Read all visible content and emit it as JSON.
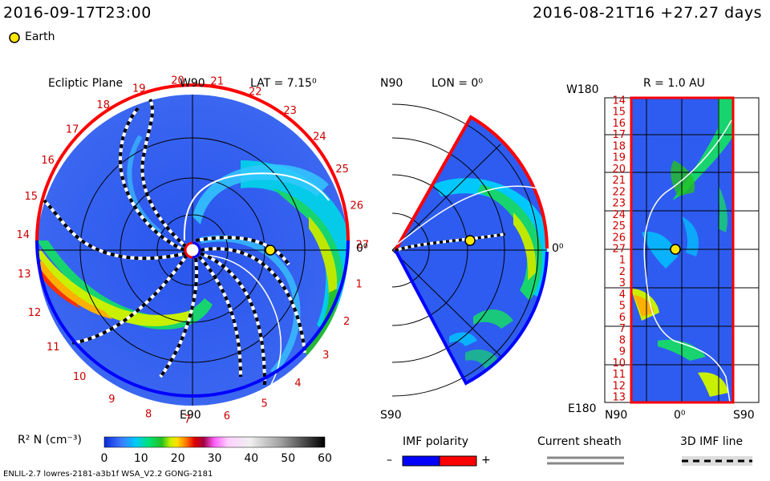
{
  "header": {
    "sim_time": "2016-09-17T23:00",
    "ref_time": "2016-08-21T16 +27.27 days",
    "earth_legend": "Earth"
  },
  "colors": {
    "earth": "#ffe600",
    "polarity_neg": "#0000ff",
    "polarity_pos": "#ff0000",
    "sheath": "#888888",
    "longitude_labels": "#cc0000"
  },
  "panels": {
    "ecliptic": {
      "title": "Ecliptic Plane",
      "top_label": "W90",
      "bottom_label": "E90",
      "right_label": "0⁰",
      "lat_label": "LAT = 7.15⁰",
      "rotation_labels": [
        "20",
        "21",
        "22",
        "23",
        "24",
        "25",
        "26",
        "27",
        "1",
        "2",
        "3",
        "4",
        "5",
        "6",
        "7",
        "8",
        "9",
        "10",
        "11",
        "12",
        "13",
        "14",
        "15",
        "16",
        "17",
        "18",
        "19"
      ]
    },
    "meridional": {
      "top_label": "N90",
      "bottom_label": "S90",
      "right_label": "0⁰",
      "lon_label": "LON = 0⁰"
    },
    "radial": {
      "title": "R = 1.0 AU",
      "top_left_label": "W180",
      "bottom_left_label": "E180",
      "x_labels": [
        "N90",
        "0⁰",
        "S90"
      ],
      "y_labels": [
        "14",
        "15",
        "16",
        "17",
        "18",
        "19",
        "20",
        "21",
        "22",
        "23",
        "24",
        "25",
        "26",
        "27",
        "1",
        "2",
        "3",
        "4",
        "5",
        "6",
        "7",
        "8",
        "9",
        "10",
        "11",
        "12",
        "13"
      ]
    }
  },
  "colorbar": {
    "label": "R² N (cm⁻³)",
    "ticks": [
      "0",
      "10",
      "20",
      "30",
      "40",
      "50",
      "60"
    ],
    "min": 0,
    "max": 60
  },
  "legend": {
    "imf_title": "IMF polarity",
    "minus": "–",
    "plus": "+",
    "sheath_title": "Current sheath",
    "imf_line_title": "3D IMF line"
  },
  "footer": {
    "model_info": "ENLIL-2.7 lowres-2181-a3b1f WSA_V2.2 GONG-2181"
  },
  "chart_data": {
    "type": "heatmap",
    "quantity": "R² N (cm⁻³)",
    "range": [
      0,
      60
    ],
    "earth_marker": {
      "radius_au": 1.0,
      "longitude_deg": 0,
      "latitude_deg": 7.15
    }
  }
}
